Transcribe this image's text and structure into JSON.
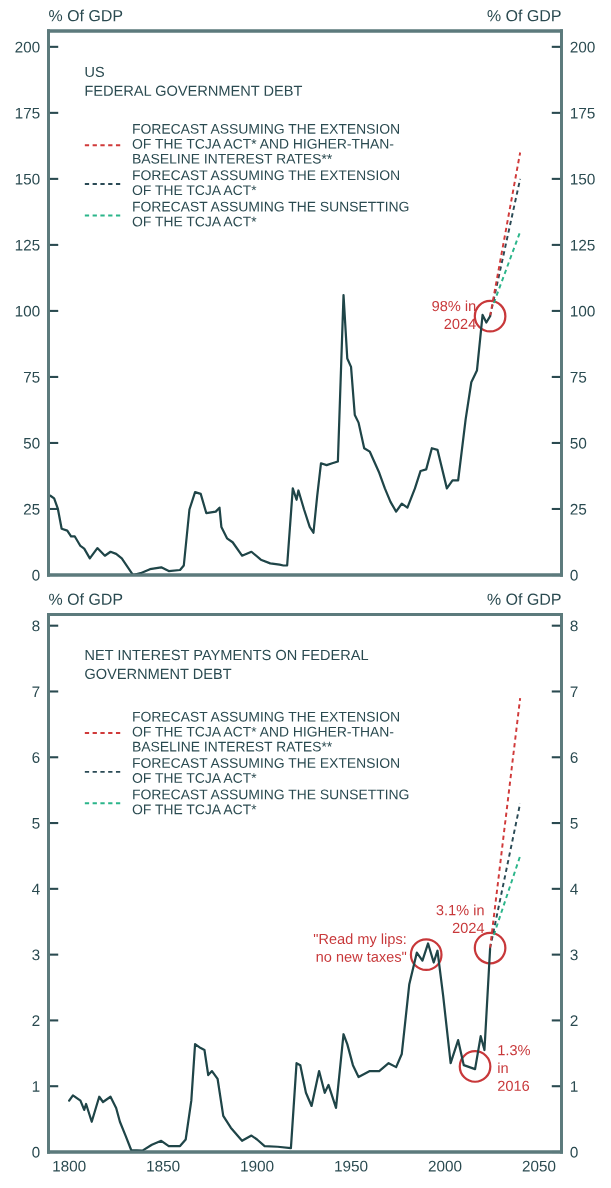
{
  "chart_data": [
    {
      "type": "line",
      "title": "US\nFEDERAL GOVERNMENT DEBT",
      "ylabel": "% Of GDP",
      "y2label": "% Of GDP",
      "xlim": [
        1789,
        2062
      ],
      "ylim": [
        0,
        206
      ],
      "yticks": [
        0,
        25,
        50,
        75,
        100,
        125,
        150,
        175,
        200
      ],
      "y2lim": [
        0,
        206
      ],
      "y2ticks": [
        0,
        25,
        50,
        75,
        100,
        125,
        150,
        175,
        200
      ],
      "tick_labels": "y",
      "legend": "top left",
      "grid": false,
      "series": [
        {
          "color": "#1f4548",
          "line_style": "solid",
          "x": [
            1790,
            1792,
            1794,
            1796,
            1799,
            1801,
            1803,
            1806,
            1808,
            1811,
            1815,
            1819,
            1822,
            1825,
            1828,
            1834,
            1838,
            1843,
            1849,
            1853,
            1859,
            1861,
            1864,
            1867,
            1870,
            1873,
            1878,
            1880,
            1881,
            1884,
            1887,
            1892,
            1897,
            1902,
            1907,
            1912,
            1914,
            1916,
            1919,
            1921,
            1922,
            1925,
            1928,
            1930,
            1932,
            1934,
            1937,
            1940,
            1943,
            1946,
            1948,
            1950,
            1952,
            1954,
            1957,
            1960,
            1965,
            1968,
            1971,
            1974,
            1977,
            1980,
            1984,
            1987,
            1990,
            1993,
            1996,
            2001,
            2004,
            2007,
            2011,
            2014,
            2017,
            2020,
            2022,
            2024
          ],
          "values": [
            30,
            29,
            25,
            17.5,
            16.8,
            14.6,
            14.6,
            11,
            10,
            6.3,
            10.2,
            7.3,
            8.8,
            8,
            6.3,
            0,
            0.7,
            2.2,
            2.9,
            1.5,
            1.9,
            3.6,
            24.8,
            31.4,
            30.7,
            23.4,
            24,
            25.5,
            18.2,
            13.9,
            12.4,
            7.3,
            8.8,
            5.8,
            4.4,
            3.9,
            3.6,
            3.6,
            32.8,
            28.5,
            32,
            24.8,
            18.2,
            16,
            30,
            42.3,
            41.6,
            42.3,
            43,
            106,
            82,
            78.8,
            60.6,
            57.7,
            48,
            46.7,
            38.7,
            32.8,
            27.7,
            24,
            27,
            25.5,
            32.8,
            39.4,
            40,
            48,
            47.4,
            32.8,
            35.8,
            35.8,
            59,
            73,
            77.4,
            98.5,
            95.6,
            98
          ]
        },
        {
          "name": "FORECAST ASSUMING THE EXTENSION\nOF THE TCJA ACT* AND HIGHER-THAN-\nBASELINE INTEREST RATES**",
          "color": "#d03a3a",
          "line_style": "dashed",
          "x": [
            2024,
            2040
          ],
          "values": [
            98,
            160
          ]
        },
        {
          "name": "FORECAST ASSUMING THE EXTENSION\nOF THE TCJA ACT*",
          "color": "#2a4a55",
          "line_style": "dashed",
          "x": [
            2024,
            2040
          ],
          "values": [
            98,
            150
          ]
        },
        {
          "name": "FORECAST ASSUMING THE SUNSETTING\nOF THE TCJA ACT*",
          "color": "#2bb58a",
          "line_style": "dashed",
          "x": [
            2026,
            2040
          ],
          "values": [
            103,
            130
          ]
        }
      ],
      "annotations": [
        {
          "text": "98% in\n2024",
          "x": 2024,
          "y": 98
        }
      ]
    },
    {
      "type": "line",
      "title": "NET INTEREST PAYMENTS ON FEDERAL\nGOVERNMENT DEBT",
      "ylabel": "% Of GDP",
      "y2label": "% Of GDP",
      "xlim": [
        1789,
        2062
      ],
      "xticks": [
        1800,
        1850,
        1900,
        1950,
        2000,
        2050
      ],
      "ylim": [
        0,
        8.17
      ],
      "yticks": [
        0,
        1,
        2,
        3,
        4,
        5,
        6,
        7,
        8
      ],
      "y2lim": [
        0,
        8.17
      ],
      "y2ticks": [
        0,
        1,
        2,
        3,
        4,
        5,
        6,
        7,
        8
      ],
      "legend": "top left",
      "grid": false,
      "series": [
        {
          "color": "#1f4548",
          "line_style": "solid",
          "x": [
            1800,
            1802,
            1806,
            1808,
            1809,
            1812,
            1816,
            1818,
            1822,
            1825,
            1827,
            1830,
            1833,
            1839,
            1844,
            1849,
            1853,
            1859,
            1862,
            1865,
            1867,
            1870,
            1872,
            1874,
            1876,
            1879,
            1882,
            1886,
            1892,
            1897,
            1900,
            1904,
            1911,
            1918,
            1921,
            1923,
            1926,
            1929,
            1933,
            1936,
            1938,
            1942,
            1946,
            1948,
            1951,
            1954,
            1960,
            1965,
            1970,
            1974,
            1977,
            1981,
            1985,
            1988,
            1991,
            1994,
            1996,
            1999,
            2003,
            2007,
            2010,
            2016,
            2019,
            2021,
            2024
          ],
          "values": [
            0.78,
            0.86,
            0.78,
            0.64,
            0.73,
            0.46,
            0.84,
            0.76,
            0.84,
            0.67,
            0.46,
            0.25,
            0.03,
            0.02,
            0.11,
            0.17,
            0.09,
            0.09,
            0.19,
            0.78,
            1.64,
            1.58,
            1.55,
            1.17,
            1.23,
            1.11,
            0.55,
            0.37,
            0.17,
            0.25,
            0.19,
            0.09,
            0.08,
            0.06,
            1.35,
            1.32,
            0.9,
            0.7,
            1.23,
            0.9,
            1.02,
            0.67,
            1.79,
            1.64,
            1.32,
            1.14,
            1.23,
            1.23,
            1.35,
            1.29,
            1.49,
            2.55,
            3.03,
            2.91,
            3.17,
            2.88,
            3.06,
            2.38,
            1.35,
            1.7,
            1.32,
            1.26,
            1.76,
            1.55,
            3.09
          ]
        },
        {
          "name": "FORECAST ASSUMING THE EXTENSION\nOF THE TCJA ACT* AND HIGHER-THAN-\nBASELINE INTEREST RATES**",
          "color": "#d03a3a",
          "line_style": "dashed",
          "x": [
            2024,
            2040
          ],
          "values": [
            3.1,
            6.9
          ]
        },
        {
          "name": "FORECAST ASSUMING THE EXTENSION\nOF THE TCJA ACT*",
          "color": "#2a4a55",
          "line_style": "dashed",
          "x": [
            2024,
            2040
          ],
          "values": [
            3.1,
            5.3
          ]
        },
        {
          "name": "FORECAST ASSUMING THE SUNSETTING\nOF THE TCJA ACT*",
          "color": "#2bb58a",
          "line_style": "dashed",
          "x": [
            2026,
            2040
          ],
          "values": [
            3.3,
            4.5
          ]
        }
      ],
      "annotations": [
        {
          "text": "\"Read my lips:\nno new taxes\"",
          "x": 1990,
          "y": 3.0
        },
        {
          "text": "3.1% in\n2024",
          "x": 2024,
          "y": 3.1
        },
        {
          "text": "1.3%\nin\n2016",
          "x": 2016,
          "y": 1.3
        }
      ]
    }
  ]
}
